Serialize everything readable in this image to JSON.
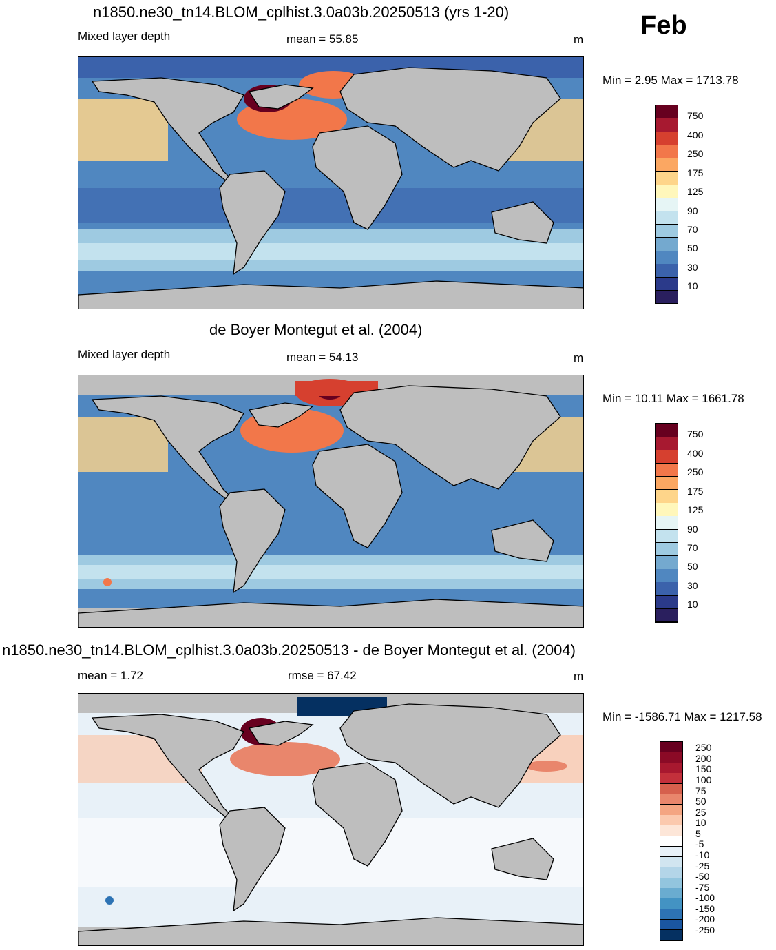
{
  "month": "Feb",
  "panels": [
    {
      "title": "n1850.ne30_tn14.BLOM_cplhist.3.0a03b.20250513 (yrs 1-20)",
      "left_label": "Mixed layer depth",
      "center_label": "mean =  55.85",
      "unit": "m",
      "minmax": "Min =   2.95 Max = 1713.78",
      "colorbar": {
        "labels": [
          "750",
          "400",
          "250",
          "175",
          "125",
          "90",
          "70",
          "50",
          "30",
          "10"
        ],
        "colors": [
          "#67001f",
          "#a71930",
          "#d6402f",
          "#f2774a",
          "#fba762",
          "#fed58a",
          "#fff7bb",
          "#e6f5f5",
          "#c3e2ee",
          "#9ecae1",
          "#74a9cf",
          "#5087c0",
          "#3b62ab",
          "#2b3a8a",
          "#2a1f5e"
        ]
      }
    },
    {
      "title": "de Boyer Montegut et al. (2004)",
      "left_label": "Mixed layer depth",
      "center_label": "mean =  54.13",
      "unit": "m",
      "minmax": "Min =  10.11 Max = 1661.78",
      "colorbar": {
        "labels": [
          "750",
          "400",
          "250",
          "175",
          "125",
          "90",
          "70",
          "50",
          "30",
          "10"
        ],
        "colors": [
          "#67001f",
          "#a71930",
          "#d6402f",
          "#f2774a",
          "#fba762",
          "#fed58a",
          "#fff7bb",
          "#e6f5f5",
          "#c3e2ee",
          "#9ecae1",
          "#74a9cf",
          "#5087c0",
          "#3b62ab",
          "#2b3a8a",
          "#2a1f5e"
        ]
      }
    },
    {
      "title": "n1850.ne30_tn14.BLOM_cplhist.3.0a03b.20250513 - de Boyer Montegut et al. (2004)",
      "left_label": "mean =   1.72",
      "center_label": "rmse =  67.42",
      "unit": "m",
      "minmax": "Min = -1586.71 Max = 1217.58",
      "colorbar": {
        "labels": [
          "250",
          "200",
          "150",
          "100",
          "75",
          "50",
          "25",
          "10",
          "5",
          "-5",
          "-10",
          "-25",
          "-50",
          "-75",
          "-100",
          "-150",
          "-200",
          "-250"
        ],
        "colors": [
          "#67001f",
          "#8b0a26",
          "#a8182f",
          "#c3303b",
          "#d6604d",
          "#e9866c",
          "#f4a582",
          "#fbc9ae",
          "#fde6d8",
          "#ffffff",
          "#e8f1f8",
          "#d1e5f0",
          "#b3d5e8",
          "#92c5de",
          "#6aacd0",
          "#4393c3",
          "#2d73b4",
          "#1a56a0",
          "#053061"
        ]
      }
    }
  ]
}
